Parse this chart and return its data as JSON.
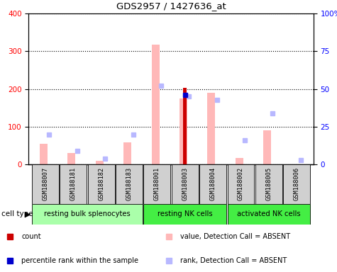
{
  "title": "GDS2957 / 1427636_at",
  "samples": [
    "GSM188007",
    "GSM188181",
    "GSM188182",
    "GSM188183",
    "GSM188001",
    "GSM188003",
    "GSM188004",
    "GSM188002",
    "GSM188005",
    "GSM188006"
  ],
  "value_absent": [
    55,
    30,
    10,
    58,
    318,
    0,
    190,
    18,
    90,
    0
  ],
  "rank_absent_pct": [
    20,
    9,
    4,
    20,
    52,
    45,
    43,
    16,
    34,
    3
  ],
  "count": [
    0,
    0,
    0,
    0,
    0,
    203,
    0,
    0,
    0,
    0
  ],
  "percentile_pct": [
    0,
    0,
    0,
    0,
    0,
    46,
    0,
    0,
    0,
    0
  ],
  "pink_bar_also": [
    0,
    0,
    0,
    0,
    0,
    175,
    0,
    0,
    0,
    0
  ],
  "ylim_left": [
    0,
    400
  ],
  "ylim_right": [
    0,
    100
  ],
  "yticks_left": [
    0,
    100,
    200,
    300,
    400
  ],
  "yticks_right": [
    0,
    25,
    50,
    75,
    100
  ],
  "yticklabels_right": [
    "0",
    "25",
    "50",
    "75",
    "100%"
  ],
  "color_value_absent": "#ffb8b8",
  "color_rank_absent": "#b8b8ff",
  "color_count": "#cc0000",
  "color_percentile": "#0000cc",
  "group_defs": [
    {
      "label": "resting bulk splenocytes",
      "start": 0,
      "end": 3,
      "color": "#aaffaa"
    },
    {
      "label": "resting NK cells",
      "start": 4,
      "end": 6,
      "color": "#44ee44"
    },
    {
      "label": "activated NK cells",
      "start": 7,
      "end": 9,
      "color": "#44ee44"
    }
  ],
  "legend_items": [
    {
      "label": "count",
      "color": "#cc0000",
      "row": 0,
      "col": 0
    },
    {
      "label": "percentile rank within the sample",
      "color": "#0000cc",
      "row": 1,
      "col": 0
    },
    {
      "label": "value, Detection Call = ABSENT",
      "color": "#ffb8b8",
      "row": 0,
      "col": 1
    },
    {
      "label": "rank, Detection Call = ABSENT",
      "color": "#b8b8ff",
      "row": 1,
      "col": 1
    }
  ]
}
